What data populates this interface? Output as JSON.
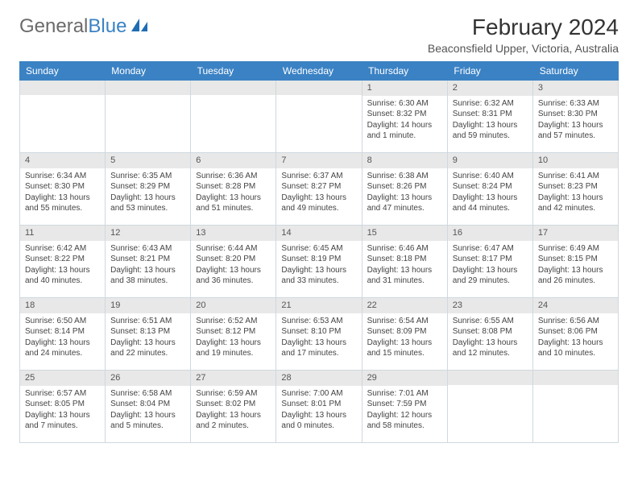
{
  "logo": {
    "text_gray": "General",
    "text_blue": "Blue"
  },
  "title": "February 2024",
  "location": "Beaconsfield Upper, Victoria, Australia",
  "colors": {
    "header_bg": "#3b82c4",
    "header_text": "#ffffff",
    "daynum_bg": "#e8e8e8",
    "border": "#cfd8e0",
    "text": "#333333"
  },
  "day_names": [
    "Sunday",
    "Monday",
    "Tuesday",
    "Wednesday",
    "Thursday",
    "Friday",
    "Saturday"
  ],
  "weeks": [
    [
      {
        "blank": true
      },
      {
        "blank": true
      },
      {
        "blank": true
      },
      {
        "blank": true
      },
      {
        "n": "1",
        "sunrise": "6:30 AM",
        "sunset": "8:32 PM",
        "daylight": "14 hours and 1 minute."
      },
      {
        "n": "2",
        "sunrise": "6:32 AM",
        "sunset": "8:31 PM",
        "daylight": "13 hours and 59 minutes."
      },
      {
        "n": "3",
        "sunrise": "6:33 AM",
        "sunset": "8:30 PM",
        "daylight": "13 hours and 57 minutes."
      }
    ],
    [
      {
        "n": "4",
        "sunrise": "6:34 AM",
        "sunset": "8:30 PM",
        "daylight": "13 hours and 55 minutes."
      },
      {
        "n": "5",
        "sunrise": "6:35 AM",
        "sunset": "8:29 PM",
        "daylight": "13 hours and 53 minutes."
      },
      {
        "n": "6",
        "sunrise": "6:36 AM",
        "sunset": "8:28 PM",
        "daylight": "13 hours and 51 minutes."
      },
      {
        "n": "7",
        "sunrise": "6:37 AM",
        "sunset": "8:27 PM",
        "daylight": "13 hours and 49 minutes."
      },
      {
        "n": "8",
        "sunrise": "6:38 AM",
        "sunset": "8:26 PM",
        "daylight": "13 hours and 47 minutes."
      },
      {
        "n": "9",
        "sunrise": "6:40 AM",
        "sunset": "8:24 PM",
        "daylight": "13 hours and 44 minutes."
      },
      {
        "n": "10",
        "sunrise": "6:41 AM",
        "sunset": "8:23 PM",
        "daylight": "13 hours and 42 minutes."
      }
    ],
    [
      {
        "n": "11",
        "sunrise": "6:42 AM",
        "sunset": "8:22 PM",
        "daylight": "13 hours and 40 minutes."
      },
      {
        "n": "12",
        "sunrise": "6:43 AM",
        "sunset": "8:21 PM",
        "daylight": "13 hours and 38 minutes."
      },
      {
        "n": "13",
        "sunrise": "6:44 AM",
        "sunset": "8:20 PM",
        "daylight": "13 hours and 36 minutes."
      },
      {
        "n": "14",
        "sunrise": "6:45 AM",
        "sunset": "8:19 PM",
        "daylight": "13 hours and 33 minutes."
      },
      {
        "n": "15",
        "sunrise": "6:46 AM",
        "sunset": "8:18 PM",
        "daylight": "13 hours and 31 minutes."
      },
      {
        "n": "16",
        "sunrise": "6:47 AM",
        "sunset": "8:17 PM",
        "daylight": "13 hours and 29 minutes."
      },
      {
        "n": "17",
        "sunrise": "6:49 AM",
        "sunset": "8:15 PM",
        "daylight": "13 hours and 26 minutes."
      }
    ],
    [
      {
        "n": "18",
        "sunrise": "6:50 AM",
        "sunset": "8:14 PM",
        "daylight": "13 hours and 24 minutes."
      },
      {
        "n": "19",
        "sunrise": "6:51 AM",
        "sunset": "8:13 PM",
        "daylight": "13 hours and 22 minutes."
      },
      {
        "n": "20",
        "sunrise": "6:52 AM",
        "sunset": "8:12 PM",
        "daylight": "13 hours and 19 minutes."
      },
      {
        "n": "21",
        "sunrise": "6:53 AM",
        "sunset": "8:10 PM",
        "daylight": "13 hours and 17 minutes."
      },
      {
        "n": "22",
        "sunrise": "6:54 AM",
        "sunset": "8:09 PM",
        "daylight": "13 hours and 15 minutes."
      },
      {
        "n": "23",
        "sunrise": "6:55 AM",
        "sunset": "8:08 PM",
        "daylight": "13 hours and 12 minutes."
      },
      {
        "n": "24",
        "sunrise": "6:56 AM",
        "sunset": "8:06 PM",
        "daylight": "13 hours and 10 minutes."
      }
    ],
    [
      {
        "n": "25",
        "sunrise": "6:57 AM",
        "sunset": "8:05 PM",
        "daylight": "13 hours and 7 minutes."
      },
      {
        "n": "26",
        "sunrise": "6:58 AM",
        "sunset": "8:04 PM",
        "daylight": "13 hours and 5 minutes."
      },
      {
        "n": "27",
        "sunrise": "6:59 AM",
        "sunset": "8:02 PM",
        "daylight": "13 hours and 2 minutes."
      },
      {
        "n": "28",
        "sunrise": "7:00 AM",
        "sunset": "8:01 PM",
        "daylight": "13 hours and 0 minutes."
      },
      {
        "n": "29",
        "sunrise": "7:01 AM",
        "sunset": "7:59 PM",
        "daylight": "12 hours and 58 minutes."
      },
      {
        "blank": true
      },
      {
        "blank": true
      }
    ]
  ],
  "labels": {
    "sunrise_prefix": "Sunrise: ",
    "sunset_prefix": "Sunset: ",
    "daylight_prefix": "Daylight: "
  }
}
